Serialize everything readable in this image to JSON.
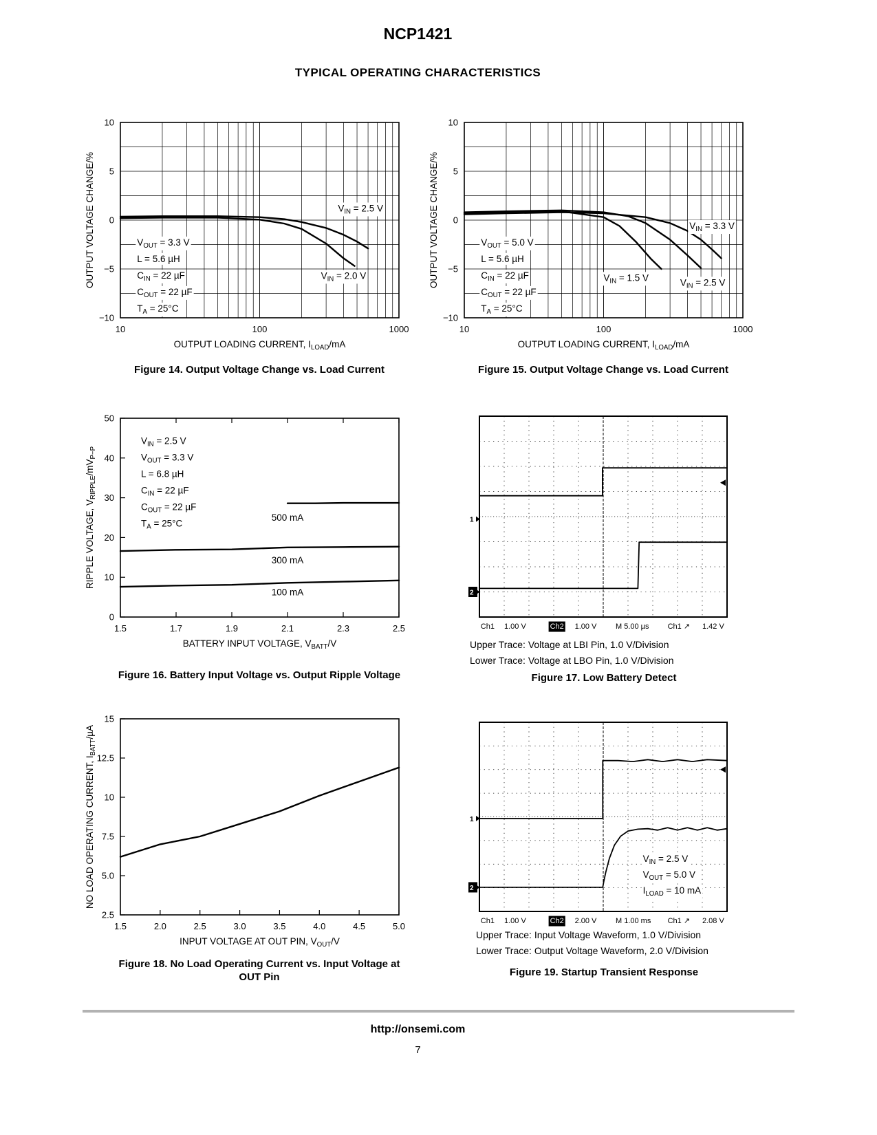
{
  "page": {
    "doc_title": "NCP1421",
    "section_title": "TYPICAL OPERATING CHARACTERISTICS",
    "footer_url": "http://onsemi.com",
    "page_number": "7"
  },
  "chart_data": [
    {
      "id": "fig14",
      "type": "line",
      "title": "Figure 14. Output Voltage Change vs. Load Current",
      "xlabel": "OUTPUT LOADING CURRENT, I_{LOAD}/mA",
      "ylabel": "OUTPUT VOLTAGE CHANGE/%",
      "x_scale": "log",
      "xlim": [
        10,
        1000
      ],
      "ylim": [
        -10,
        10
      ],
      "grid": "log-dense",
      "y_minor_step": 2.5,
      "x_ticks": [
        {
          "v": 10,
          "l": "10"
        },
        {
          "v": 100,
          "l": "100"
        },
        {
          "v": 1000,
          "l": "1000"
        }
      ],
      "y_ticks": [
        {
          "v": 10,
          "l": "10"
        },
        {
          "v": 5,
          "l": "5"
        },
        {
          "v": 0,
          "l": "0"
        },
        {
          "v": -5,
          "l": "−5"
        },
        {
          "v": -10,
          "l": "−10"
        }
      ],
      "series": [
        {
          "name": "VIN = 2.5 V",
          "x": [
            10,
            20,
            50,
            100,
            150,
            200,
            300,
            400,
            500,
            600
          ],
          "y": [
            0.35,
            0.4,
            0.4,
            0.3,
            0.1,
            -0.2,
            -0.8,
            -1.5,
            -2.2,
            -2.9
          ]
        },
        {
          "name": "VIN = 2.0 V",
          "x": [
            10,
            20,
            50,
            100,
            150,
            200,
            300,
            400,
            480
          ],
          "y": [
            0.2,
            0.25,
            0.25,
            0.05,
            -0.35,
            -0.9,
            -2.4,
            -3.9,
            -4.7
          ]
        }
      ],
      "series_labels": [
        {
          "text": "V_{IN} = 2.5 V",
          "x": 530,
          "y": 1.2
        },
        {
          "text": "V_{IN} = 2.0 V",
          "x": 400,
          "y": -5.7
        }
      ],
      "annotation": {
        "fx": 0.06,
        "fy": 0.63,
        "lines": [
          "V_{OUT} = 3.3 V",
          "L = 5.6 µH",
          "C_{IN} = 22 µF",
          "C_{OUT} = 22 µF",
          "T_{A} = 25°C"
        ]
      }
    },
    {
      "id": "fig15",
      "type": "line",
      "title": "Figure 15. Output Voltage Change vs. Load Current",
      "xlabel": "OUTPUT LOADING CURRENT, I_{LOAD}/mA",
      "ylabel": "OUTPUT VOLTAGE CHANGE/%",
      "x_scale": "log",
      "xlim": [
        10,
        1000
      ],
      "ylim": [
        -10,
        10
      ],
      "grid": "log-dense",
      "y_minor_step": 2.5,
      "x_ticks": [
        {
          "v": 10,
          "l": "10"
        },
        {
          "v": 100,
          "l": "100"
        },
        {
          "v": 1000,
          "l": "1000"
        }
      ],
      "y_ticks": [
        {
          "v": 10,
          "l": "10"
        },
        {
          "v": 5,
          "l": "5"
        },
        {
          "v": 0,
          "l": "0"
        },
        {
          "v": -5,
          "l": "−5"
        },
        {
          "v": -10,
          "l": "−10"
        }
      ],
      "series": [
        {
          "name": "VIN = 3.3 V",
          "x": [
            10,
            20,
            50,
            100,
            200,
            300,
            400,
            500,
            600,
            700
          ],
          "y": [
            0.6,
            0.7,
            0.8,
            0.7,
            0.3,
            -0.3,
            -1.1,
            -2.0,
            -3.0,
            -3.9
          ]
        },
        {
          "name": "VIN = 2.5 V",
          "x": [
            10,
            20,
            50,
            100,
            150,
            200,
            300,
            400,
            500
          ],
          "y": [
            0.8,
            0.9,
            1.0,
            0.8,
            0.4,
            -0.3,
            -2.0,
            -3.6,
            -4.9
          ]
        },
        {
          "name": "VIN = 1.5 V",
          "x": [
            10,
            20,
            50,
            100,
            130,
            170,
            220,
            260
          ],
          "y": [
            0.7,
            0.8,
            0.9,
            0.3,
            -0.6,
            -2.2,
            -4.0,
            -5.0
          ]
        }
      ],
      "series_labels": [
        {
          "text": "V_{IN} = 3.3 V",
          "x": 600,
          "y": -0.6
        },
        {
          "text": "V_{IN} = 1.5 V",
          "x": 145,
          "y": -5.9
        },
        {
          "text": "V_{IN} = 2.5 V",
          "x": 515,
          "y": -6.4
        }
      ],
      "annotation": {
        "fx": 0.06,
        "fy": 0.63,
        "lines": [
          "V_{OUT} = 5.0 V",
          "L = 5.6 µH",
          "C_{IN} = 22 µF",
          "C_{OUT} = 22 µF",
          "T_{A} = 25°C"
        ]
      }
    },
    {
      "id": "fig16",
      "type": "line",
      "title": "Figure 16. Battery Input Voltage vs. Output Ripple Voltage",
      "xlabel": "BATTERY INPUT VOLTAGE, V_{BATT}/V",
      "ylabel": "RIPPLE VOLTAGE, V_{RIPPLE}/mV_{P−P}",
      "x_scale": "linear",
      "xlim": [
        1.5,
        2.5
      ],
      "ylim": [
        0,
        50
      ],
      "grid": "ticks-top",
      "x_ticks": [
        {
          "v": 1.5,
          "l": "1.5"
        },
        {
          "v": 1.7,
          "l": "1.7"
        },
        {
          "v": 1.9,
          "l": "1.9"
        },
        {
          "v": 2.1,
          "l": "2.1"
        },
        {
          "v": 2.3,
          "l": "2.3"
        },
        {
          "v": 2.5,
          "l": "2.5"
        }
      ],
      "y_ticks": [
        {
          "v": 50,
          "l": "50"
        },
        {
          "v": 40,
          "l": "40"
        },
        {
          "v": 30,
          "l": "30"
        },
        {
          "v": 20,
          "l": "20"
        },
        {
          "v": 10,
          "l": "10"
        },
        {
          "v": 0,
          "l": "0"
        }
      ],
      "series": [
        {
          "name": "500 mA",
          "x": [
            2.1,
            2.2,
            2.3,
            2.4,
            2.5
          ],
          "y": [
            28.6,
            28.6,
            28.7,
            28.7,
            28.7
          ]
        },
        {
          "name": "300 mA",
          "x": [
            1.5,
            1.7,
            1.9,
            2.1,
            2.3,
            2.5
          ],
          "y": [
            16.6,
            16.9,
            17.0,
            17.5,
            17.6,
            17.7
          ]
        },
        {
          "name": "100 mA",
          "x": [
            1.5,
            1.7,
            1.9,
            2.1,
            2.3,
            2.5
          ],
          "y": [
            7.6,
            7.9,
            8.1,
            8.6,
            8.9,
            9.2
          ]
        }
      ],
      "series_labels": [
        {
          "text": "500 mA",
          "x": 2.1,
          "y": 25.0
        },
        {
          "text": "300 mA",
          "x": 2.1,
          "y": 14.3
        },
        {
          "text": "100 mA",
          "x": 2.1,
          "y": 6.2
        }
      ],
      "annotation": {
        "fx": 0.074,
        "fy": 0.13,
        "lines": [
          "V_{IN} = 2.5 V",
          "V_{OUT} = 3.3 V",
          "L = 6.8 µH",
          "C_{IN} = 22 µF",
          "C_{OUT} = 22 µF",
          "T_{A} = 25°C"
        ]
      }
    },
    {
      "id": "fig17",
      "type": "scope",
      "title": "Figure 17. Low Battery Detect",
      "notes": [
        "Upper Trace: Voltage at LBI Pin, 1.0 V/Division",
        "Lower Trace: Voltage at LBO Pin, 1.0 V/Division"
      ],
      "divisions": [
        10,
        8
      ],
      "traces": [
        {
          "name": "LBI pin voltage",
          "points": [
            [
              0,
              3.17
            ],
            [
              4.97,
              3.17
            ],
            [
              4.97,
              2.06
            ],
            [
              10,
              2.06
            ]
          ]
        },
        {
          "name": "LBO pin voltage",
          "points": [
            [
              0,
              6.86
            ],
            [
              6.4,
              6.86
            ],
            [
              6.45,
              5.02
            ],
            [
              10,
              5.02
            ]
          ]
        }
      ],
      "markers": [
        {
          "label": "1",
          "y": 4.1,
          "boxed": false
        },
        {
          "label": "2",
          "y": 7.0,
          "boxed": true
        }
      ],
      "right_marker_y": 2.65,
      "readout": [
        {
          "t": "Ch1",
          "x": 0.005
        },
        {
          "t": "1.00 V",
          "x": 0.1
        },
        {
          "t": "Ch2",
          "x": 0.285,
          "boxed": true
        },
        {
          "t": "1.00 V",
          "x": 0.385
        },
        {
          "t": "M 5.00 µs",
          "x": 0.55
        },
        {
          "t": "Ch1 ↗",
          "x": 0.76
        },
        {
          "t": "1.42 V",
          "x": 0.9
        }
      ]
    },
    {
      "id": "fig18",
      "type": "line",
      "title": "Figure 18. No Load Operating Current vs. Input Voltage at OUT Pin",
      "xlabel": "INPUT VOLTAGE AT OUT PIN, V_{OUT}/V",
      "ylabel": "NO LOAD OPERATING CURRENT, I_{BATT}/µA",
      "x_scale": "linear",
      "xlim": [
        1.5,
        5.0
      ],
      "ylim": [
        2.5,
        15
      ],
      "grid": "ticks",
      "x_ticks": [
        {
          "v": 1.5,
          "l": "1.5"
        },
        {
          "v": 2.0,
          "l": "2.0"
        },
        {
          "v": 2.5,
          "l": "2.5"
        },
        {
          "v": 3.0,
          "l": "3.0"
        },
        {
          "v": 3.5,
          "l": "3.5"
        },
        {
          "v": 4.0,
          "l": "4.0"
        },
        {
          "v": 4.5,
          "l": "4.5"
        },
        {
          "v": 5.0,
          "l": "5.0"
        }
      ],
      "y_ticks": [
        {
          "v": 15,
          "l": "15"
        },
        {
          "v": 12.5,
          "l": "12.5"
        },
        {
          "v": 10,
          "l": "10"
        },
        {
          "v": 7.5,
          "l": "7.5"
        },
        {
          "v": 5,
          "l": "5.0"
        },
        {
          "v": 2.5,
          "l": "2.5"
        }
      ],
      "series": [
        {
          "name": "IBATT",
          "x": [
            1.5,
            2.0,
            2.5,
            3.0,
            3.5,
            4.0,
            4.5,
            5.0
          ],
          "y": [
            6.2,
            7.0,
            7.5,
            8.3,
            9.1,
            10.1,
            11.0,
            11.9
          ]
        }
      ],
      "series_labels": [],
      "annotation": null
    },
    {
      "id": "fig19",
      "type": "scope",
      "title": "Figure 19. Startup Transient Response",
      "notes": [
        "Upper Trace: Input Voltage Waveform, 1.0 V/Division",
        "Lower Trace: Output Voltage Waveform, 2.0 V/Division"
      ],
      "divisions": [
        10,
        8
      ],
      "traces": [
        {
          "name": "Input voltage",
          "points": [
            [
              0,
              4.07
            ],
            [
              4.98,
              4.07
            ],
            [
              4.98,
              1.62
            ],
            [
              5.6,
              1.62
            ],
            [
              6.2,
              1.66
            ],
            [
              6.8,
              1.58
            ],
            [
              7.4,
              1.66
            ],
            [
              8.0,
              1.58
            ],
            [
              8.6,
              1.66
            ],
            [
              9.2,
              1.58
            ],
            [
              10,
              1.62
            ]
          ]
        },
        {
          "name": "Output voltage",
          "points": [
            [
              0,
              6.98
            ],
            [
              4.98,
              6.98
            ],
            [
              5.02,
              6.75
            ],
            [
              5.1,
              6.35
            ],
            [
              5.25,
              5.75
            ],
            [
              5.45,
              5.2
            ],
            [
              5.7,
              4.82
            ],
            [
              6.0,
              4.6
            ],
            [
              6.4,
              4.52
            ],
            [
              6.8,
              4.5
            ],
            [
              7.2,
              4.56
            ],
            [
              7.6,
              4.46
            ],
            [
              8.0,
              4.56
            ],
            [
              8.4,
              4.46
            ],
            [
              8.8,
              4.56
            ],
            [
              9.2,
              4.46
            ],
            [
              9.6,
              4.56
            ],
            [
              10,
              4.5
            ]
          ]
        }
      ],
      "markers": [
        {
          "label": "1",
          "y": 4.07,
          "boxed": false
        },
        {
          "label": "2",
          "y": 6.98,
          "boxed": true
        }
      ],
      "right_marker_y": 2.0,
      "annotation": {
        "dx": 6.6,
        "dy": 5.9,
        "lines": [
          "V_{IN} = 2.5 V",
          "V_{OUT} = 5.0 V",
          "I_{LOAD} = 10 mA"
        ]
      },
      "readout": [
        {
          "t": "Ch1",
          "x": 0.005
        },
        {
          "t": "1.00 V",
          "x": 0.1
        },
        {
          "t": "Ch2",
          "x": 0.285,
          "boxed": true
        },
        {
          "t": "2.00 V",
          "x": 0.385
        },
        {
          "t": "M 1.00 ms",
          "x": 0.55
        },
        {
          "t": "Ch1 ↗",
          "x": 0.76
        },
        {
          "t": "2.08 V",
          "x": 0.9
        }
      ]
    }
  ]
}
